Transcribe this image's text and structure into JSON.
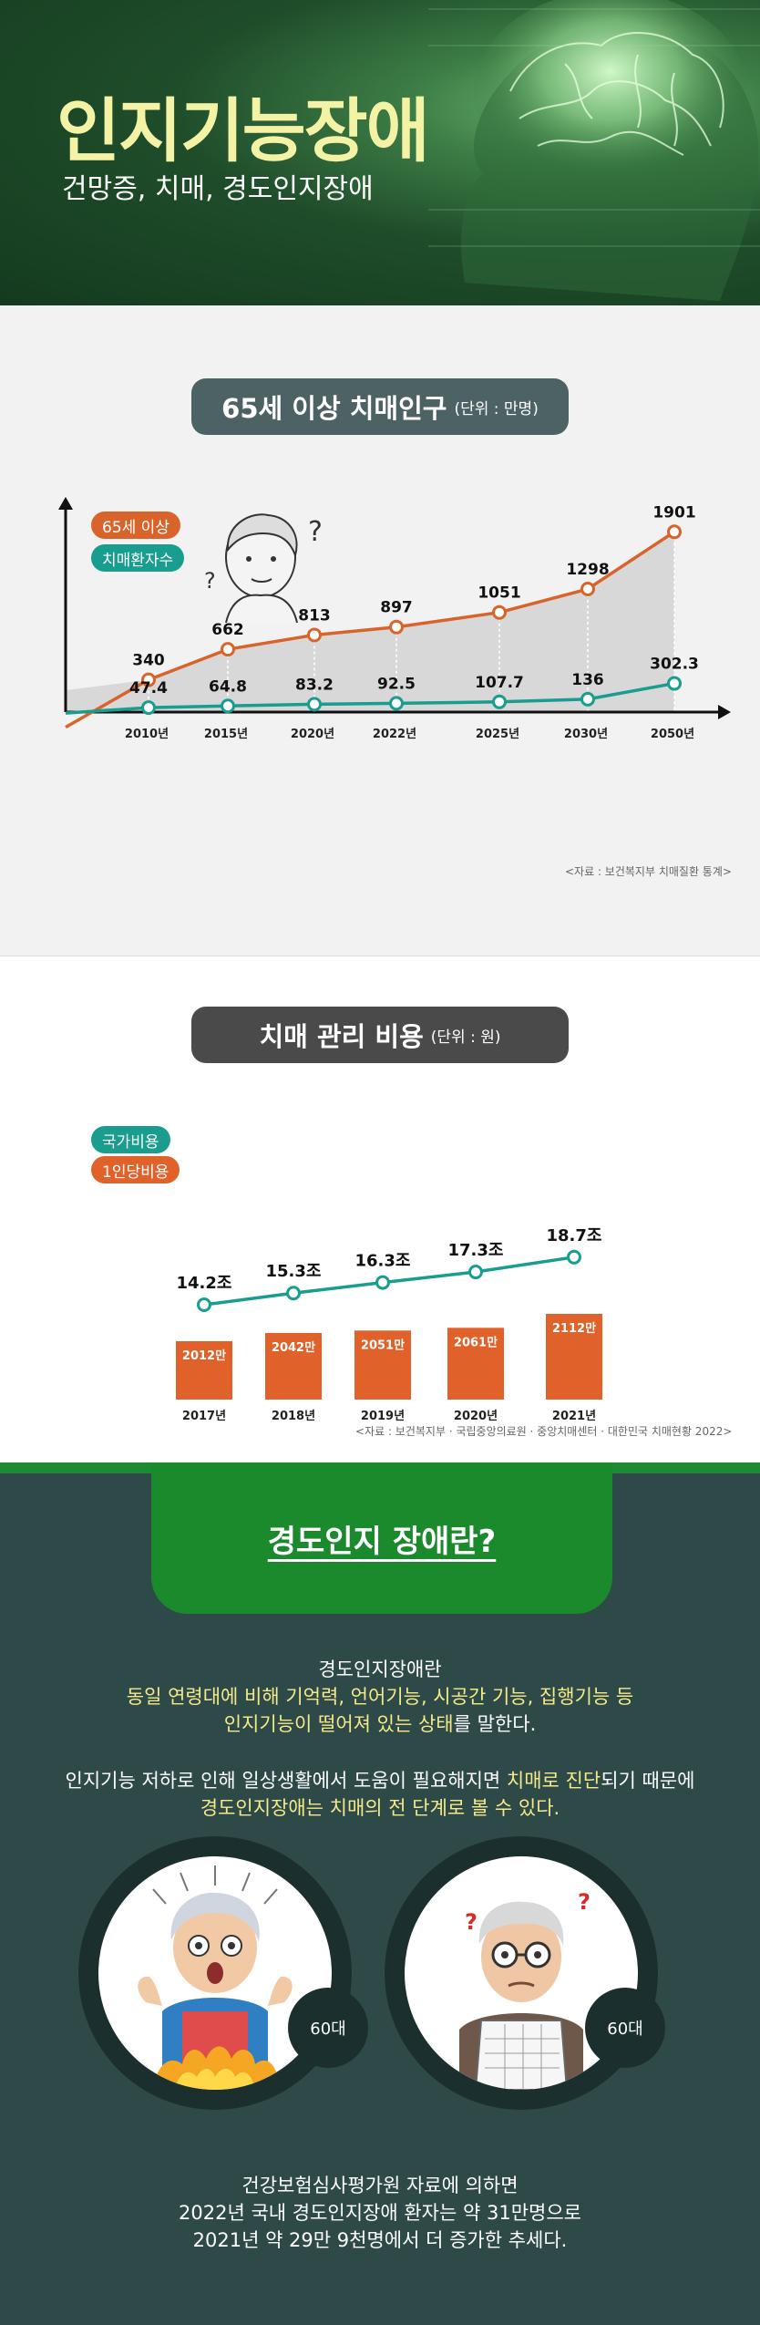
{
  "header": {
    "title": "인지기능장애",
    "subtitle": "건망증, 치매, 경도인지장애"
  },
  "section1": {
    "title_main": "65세 이상 치매인구",
    "title_unit": "(단위 : 만명)",
    "legend": {
      "series1": "65세 이상",
      "series2": "치매환자수"
    },
    "source": "<자료 : 보건복지부 치매질환 통계>",
    "chart_data": {
      "type": "line",
      "categories": [
        "2010년",
        "2015년",
        "2020년",
        "2022년",
        "2025년",
        "2030년",
        "2050년"
      ],
      "series": [
        {
          "name": "65세 이상",
          "values": [
            340,
            662,
            813,
            897,
            1051,
            1298,
            1901
          ],
          "labels": [
            "340",
            "662",
            "813",
            "897",
            "1051",
            "1298",
            "1901"
          ],
          "color": "#d9642b"
        },
        {
          "name": "치매환자수",
          "values": [
            47.4,
            64.8,
            83.2,
            92.5,
            107.7,
            136,
            302.3
          ],
          "labels": [
            "47.4",
            "64.8",
            "83.2",
            "92.5",
            "107.7",
            "136",
            "302.3"
          ],
          "color": "#199d8f"
        }
      ]
    }
  },
  "section2": {
    "title_main": "치매 관리 비용",
    "title_unit": "(단위 : 원)",
    "legend": {
      "series1": "국가비용",
      "series2": "1인당비용"
    },
    "source": "<자료 : 보건복지부 · 국립중앙의료원 · 중앙치매센터 · 대한민국 치매현황 2022>",
    "chart_data": {
      "type": "bar",
      "categories": [
        "2017년",
        "2018년",
        "2019년",
        "2020년",
        "2021년"
      ],
      "series": [
        {
          "name": "국가비용",
          "values": [
            14.2,
            15.3,
            16.3,
            17.3,
            18.7
          ],
          "labels": [
            "14.2조",
            "15.3조",
            "16.3조",
            "17.3조",
            "18.7조"
          ],
          "color": "#199d8f"
        },
        {
          "name": "1인당비용",
          "values": [
            2012,
            2042,
            2051,
            2061,
            2112
          ],
          "labels": [
            "2012만",
            "2042만",
            "2051만",
            "2061만",
            "2112만"
          ],
          "color": "#e0622a"
        }
      ]
    }
  },
  "section3": {
    "banner": "경도인지 장애란?",
    "p1_line1": "경도인지장애란",
    "p1_line2": "동일 연령대에 비해 기억력, 언어기능, 시공간 기능, 집행기능 등",
    "p1_line3a": "인지기능이 떨어져 있는 상태",
    "p1_line3b": "를 말한다.",
    "p2_line1a": "인지기능 저하로 인해 일상생활에서 도움이 필요해지면 ",
    "p2_line1b": "치매로 진단",
    "p2_line1c": "되기 때문에",
    "p2_line2": "경도인지장애는 치매의 전 단계로 볼 수 있다.",
    "age1": "60대",
    "age2": "60대",
    "p3_line1": "건강보험심사평가원 자료에 의하면",
    "p3_line2": "2022년 국내 경도인지장애 환자는 약 31만명으로",
    "p3_line3": "2021년 약 29만 9천명에서 더 증가한 추세다."
  }
}
